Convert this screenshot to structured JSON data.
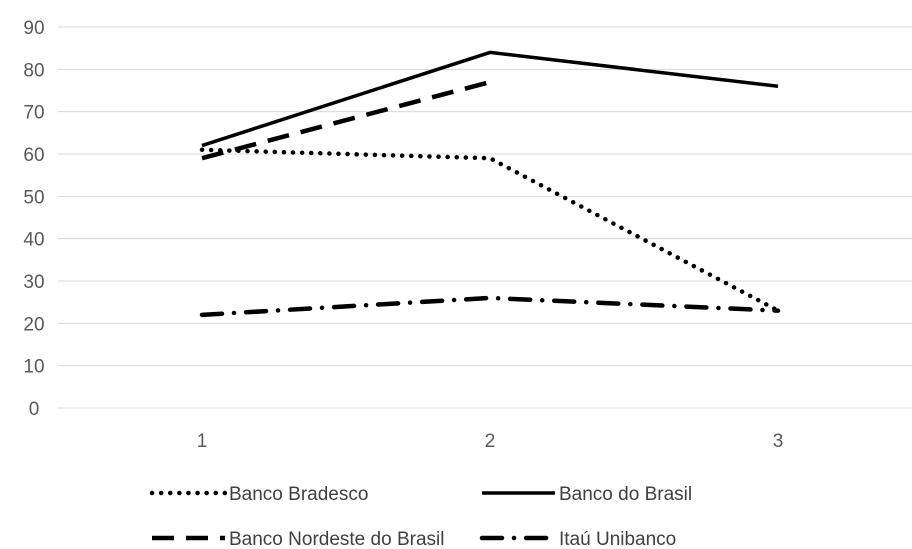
{
  "chart_data": {
    "type": "line",
    "title": "",
    "xlabel": "",
    "ylabel": "",
    "categories": [
      "1",
      "2",
      "3"
    ],
    "ylim": [
      0,
      90
    ],
    "yticks": [
      "0",
      "10",
      "20",
      "30",
      "40",
      "50",
      "60",
      "70",
      "80",
      "90"
    ],
    "grid": true,
    "legend_position": "bottom",
    "series": [
      {
        "name": "Banco Bradesco",
        "values": [
          61,
          59,
          23
        ],
        "style": "dotted",
        "color": "#000000"
      },
      {
        "name": "Banco do Brasil",
        "values": [
          62,
          84,
          76
        ],
        "style": "solid",
        "color": "#000000"
      },
      {
        "name": "Banco Nordeste do Brasil",
        "values": [
          59,
          77,
          null
        ],
        "style": "dashed",
        "color": "#000000"
      },
      {
        "name": "Itaú Unibanco",
        "values": [
          22,
          26,
          23
        ],
        "style": "dash-dot",
        "color": "#000000"
      }
    ]
  }
}
